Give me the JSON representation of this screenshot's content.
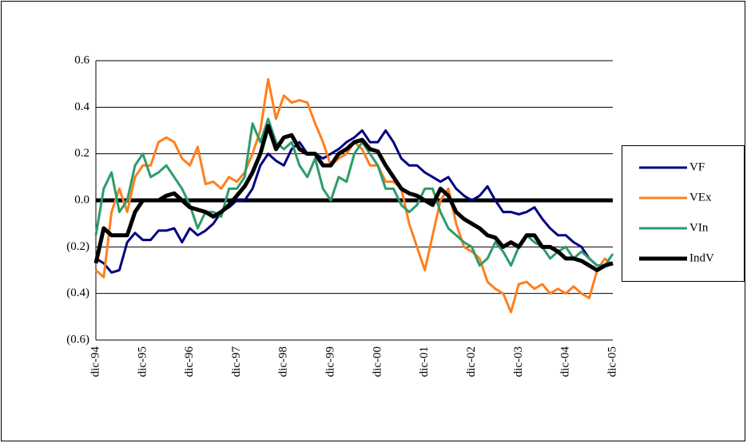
{
  "chart_data": {
    "type": "line",
    "categories": [
      "dic-94",
      null,
      null,
      null,
      null,
      null,
      "dic-95",
      null,
      null,
      null,
      null,
      null,
      "dic-96",
      null,
      null,
      null,
      null,
      null,
      "dic-97",
      null,
      null,
      null,
      null,
      null,
      "dic-98",
      null,
      null,
      null,
      null,
      null,
      "dic-99",
      null,
      null,
      null,
      null,
      null,
      "dic-00",
      null,
      null,
      null,
      null,
      null,
      "dic-01",
      null,
      null,
      null,
      null,
      null,
      "dic-02",
      null,
      null,
      null,
      null,
      null,
      "dic-03",
      null,
      null,
      null,
      null,
      null,
      "dic-04",
      null,
      null,
      null,
      null,
      null,
      "dic-05"
    ],
    "series": [
      {
        "name": "VF",
        "color": "#000080",
        "width": 3,
        "values": [
          -0.25,
          -0.27,
          -0.31,
          -0.3,
          -0.18,
          -0.14,
          -0.17,
          -0.17,
          -0.13,
          -0.13,
          -0.12,
          -0.18,
          -0.12,
          -0.15,
          -0.13,
          -0.1,
          -0.05,
          -0.03,
          0.0,
          0.0,
          0.05,
          0.15,
          0.2,
          0.17,
          0.15,
          0.22,
          0.25,
          0.2,
          0.2,
          0.18,
          0.2,
          0.22,
          0.25,
          0.27,
          0.3,
          0.25,
          0.25,
          0.3,
          0.25,
          0.18,
          0.15,
          0.15,
          0.12,
          0.1,
          0.08,
          0.1,
          0.05,
          0.02,
          0.0,
          0.02,
          0.06,
          0.0,
          -0.05,
          -0.05,
          -0.06,
          -0.05,
          -0.03,
          -0.08,
          -0.12,
          -0.15,
          -0.15,
          -0.18,
          -0.2,
          -0.25,
          -0.28,
          -0.28,
          -0.27
        ]
      },
      {
        "name": "VEx",
        "color": "#ff7f1e",
        "width": 3,
        "values": [
          -0.3,
          -0.33,
          -0.05,
          0.05,
          -0.05,
          0.1,
          0.15,
          0.15,
          0.25,
          0.27,
          0.25,
          0.18,
          0.15,
          0.23,
          0.07,
          0.08,
          0.05,
          0.1,
          0.08,
          0.12,
          0.2,
          0.3,
          0.52,
          0.35,
          0.45,
          0.42,
          0.43,
          0.42,
          0.33,
          0.25,
          0.15,
          0.18,
          0.2,
          0.25,
          0.22,
          0.15,
          0.15,
          0.08,
          0.08,
          0.05,
          -0.1,
          -0.2,
          -0.3,
          -0.15,
          0.0,
          0.05,
          -0.1,
          -0.2,
          -0.22,
          -0.25,
          -0.35,
          -0.38,
          -0.4,
          -0.48,
          -0.36,
          -0.35,
          -0.38,
          -0.36,
          -0.4,
          -0.38,
          -0.4,
          -0.37,
          -0.4,
          -0.42,
          -0.3,
          -0.25,
          -0.28
        ]
      },
      {
        "name": "VIn",
        "color": "#2e9b6a",
        "width": 3,
        "values": [
          -0.15,
          0.05,
          0.12,
          -0.05,
          0.0,
          0.15,
          0.2,
          0.1,
          0.12,
          0.15,
          0.1,
          0.05,
          -0.02,
          -0.12,
          -0.05,
          -0.05,
          -0.07,
          0.05,
          0.05,
          0.1,
          0.33,
          0.25,
          0.35,
          0.25,
          0.22,
          0.25,
          0.15,
          0.1,
          0.18,
          0.05,
          0.0,
          0.1,
          0.08,
          0.2,
          0.25,
          0.2,
          0.15,
          0.05,
          0.05,
          -0.02,
          -0.05,
          -0.02,
          0.05,
          0.05,
          -0.05,
          -0.12,
          -0.15,
          -0.18,
          -0.2,
          -0.28,
          -0.25,
          -0.18,
          -0.22,
          -0.28,
          -0.2,
          -0.15,
          -0.18,
          -0.2,
          -0.25,
          -0.22,
          -0.2,
          -0.25,
          -0.22,
          -0.25,
          -0.28,
          -0.28,
          -0.23
        ]
      },
      {
        "name": "IndV",
        "color": "#000000",
        "width": 5,
        "values": [
          -0.27,
          -0.12,
          -0.15,
          -0.15,
          -0.15,
          -0.05,
          0.0,
          0.0,
          0.0,
          0.02,
          0.03,
          0.0,
          -0.03,
          -0.04,
          -0.05,
          -0.07,
          -0.05,
          -0.02,
          0.02,
          0.06,
          0.12,
          0.2,
          0.32,
          0.22,
          0.27,
          0.28,
          0.22,
          0.2,
          0.2,
          0.15,
          0.15,
          0.2,
          0.22,
          0.25,
          0.26,
          0.22,
          0.21,
          0.15,
          0.1,
          0.05,
          0.03,
          0.02,
          0.0,
          -0.02,
          0.05,
          0.02,
          -0.05,
          -0.08,
          -0.1,
          -0.12,
          -0.15,
          -0.16,
          -0.2,
          -0.18,
          -0.2,
          -0.15,
          -0.15,
          -0.2,
          -0.2,
          -0.22,
          -0.25,
          -0.25,
          -0.26,
          -0.28,
          -0.3,
          -0.28,
          -0.27
        ]
      }
    ],
    "ylim": [
      -0.6,
      0.6
    ],
    "yticks": [
      {
        "value": -0.6,
        "label": "(0.6)"
      },
      {
        "value": -0.4,
        "label": "(0.4)"
      },
      {
        "value": -0.2,
        "label": "(0.2)"
      },
      {
        "value": 0,
        "label": "0.0"
      },
      0.2,
      0.4,
      0.6
    ],
    "grid": true,
    "legend": "right"
  }
}
